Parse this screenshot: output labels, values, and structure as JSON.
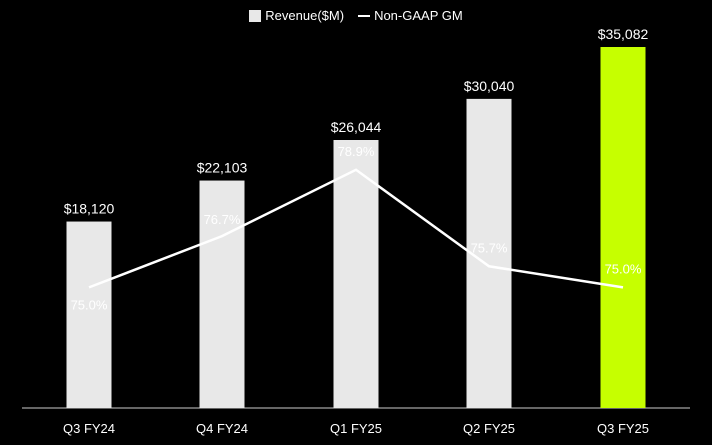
{
  "chart_data": {
    "type": "bar",
    "categories": [
      "Q3 FY24",
      "Q4 FY24",
      "Q1 FY25",
      "Q2 FY25",
      "Q3 FY25"
    ],
    "series": [
      {
        "name": "Revenue($M)",
        "type": "bar",
        "values": [
          18120,
          22103,
          26044,
          30040,
          35082
        ],
        "labels": [
          "$18,120",
          "$22,103",
          "$26,044",
          "$30,040",
          "$35,082"
        ]
      },
      {
        "name": "Non-GAAP GM",
        "type": "line",
        "values": [
          75.0,
          76.7,
          78.9,
          75.7,
          75.0
        ],
        "labels": [
          "75.0%",
          "76.7%",
          "78.9%",
          "75.7%",
          "75.0%"
        ]
      }
    ],
    "title": "",
    "xlabel": "",
    "ylabel": "",
    "bar_ylim": [
      0,
      35082
    ],
    "line_ylim": [
      71,
      84
    ],
    "grid": false,
    "legend": "top-center",
    "colors": {
      "bar": "#e8e8e8",
      "bar_highlight": "#c6ff00",
      "line": "#ffffff",
      "background": "#000000"
    },
    "highlight_index": 4
  }
}
